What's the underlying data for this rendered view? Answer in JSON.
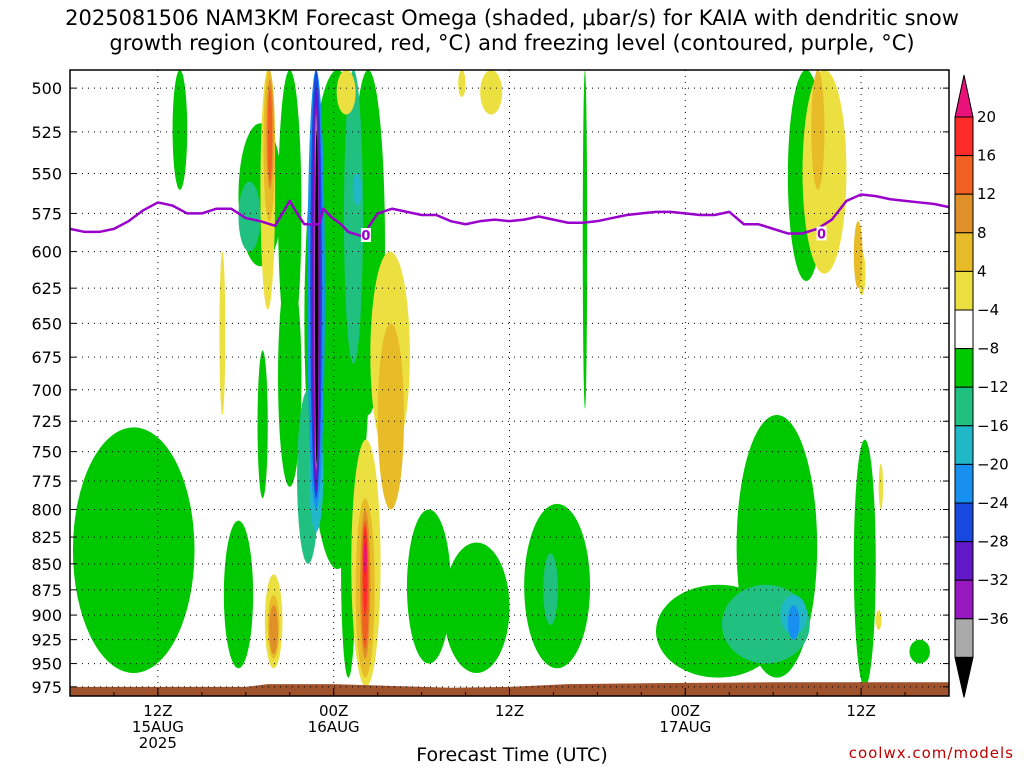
{
  "chart_data": {
    "type": "heatmap",
    "title_line1": "2025081506 NAM3KM Forecast Omega (shaded, μbar/s) for KAIA with dendritic snow",
    "title_line2": "growth region (contoured, red, °C) and freezing level (contoured, purple, °C)",
    "xlabel": "Forecast Time (UTC)",
    "ylabel": "",
    "credit": "coolwx.com/models",
    "y_ticks": [
      500,
      525,
      550,
      575,
      600,
      625,
      650,
      675,
      700,
      725,
      750,
      775,
      800,
      825,
      850,
      875,
      900,
      925,
      950,
      975
    ],
    "y_labels": [
      "500",
      "525",
      "550",
      "575",
      "600",
      "625",
      "650",
      "675",
      "700",
      "725",
      "750",
      "775",
      "800",
      "825",
      "850",
      "875",
      "900",
      "925",
      "950",
      "975"
    ],
    "ylim": [
      490,
      985
    ],
    "y_scale": "log",
    "xlim": [
      0,
      60
    ],
    "x_ticks": [
      {
        "hour": 6,
        "lines": [
          "12Z",
          "15AUG",
          "2025"
        ]
      },
      {
        "hour": 18,
        "lines": [
          "00Z",
          "16AUG"
        ]
      },
      {
        "hour": 30,
        "lines": [
          "12Z"
        ]
      },
      {
        "hour": 42,
        "lines": [
          "00Z",
          "17AUG"
        ]
      },
      {
        "hour": 54,
        "lines": [
          "12Z"
        ]
      }
    ],
    "grid": true,
    "colorbar": {
      "labels": [
        "20",
        "16",
        "12",
        "8",
        "4",
        "−4",
        "−8",
        "−12",
        "−16",
        "−20",
        "−24",
        "−28",
        "−32",
        "−36"
      ],
      "bounds": [
        20,
        16,
        12,
        8,
        4,
        -4,
        -8,
        -12,
        -16,
        -20,
        -24,
        -28,
        -32,
        -36
      ],
      "colors": [
        "#ff2a2a",
        "#f06020",
        "#e09028",
        "#e8bc28",
        "#ece040",
        "#ffffff",
        "#00c800",
        "#20c080",
        "#20b8c8",
        "#1890f0",
        "#1848e0",
        "#6018c8",
        "#9818c0",
        "#aaaaaa"
      ],
      "top_color": "#e8127a",
      "bottom_color": "#000000"
    },
    "freezing_level": {
      "value_label": "0",
      "x": [
        0,
        1,
        2,
        3,
        4,
        5,
        6,
        7,
        8,
        9,
        10,
        11,
        12,
        13,
        14,
        15,
        15.5,
        16,
        17,
        17.3,
        17.8,
        18.5,
        19,
        20,
        20.5,
        21,
        22,
        23,
        24,
        25,
        26,
        27,
        28,
        29,
        30,
        31,
        32,
        33,
        34,
        35,
        36,
        37,
        38,
        39,
        40,
        41,
        42,
        43,
        44,
        45,
        46,
        47,
        48,
        49,
        50,
        51,
        52,
        53,
        54,
        55,
        56,
        57,
        58,
        59,
        60
      ],
      "y": [
        585,
        587,
        587,
        585,
        580,
        573,
        568,
        570,
        575,
        575,
        572,
        572,
        578,
        580,
        583,
        567,
        575,
        582,
        582,
        572,
        577,
        582,
        587,
        590,
        582,
        575,
        572,
        574,
        576,
        576,
        580,
        582,
        580,
        579,
        580,
        579,
        577,
        579,
        581,
        581,
        580,
        578,
        576,
        575,
        574,
        574,
        575,
        576,
        576,
        574,
        582,
        582,
        585,
        588,
        588,
        585,
        579,
        567,
        563,
        564,
        566,
        567,
        568,
        569,
        571
      ]
    },
    "label_points": [
      {
        "x": 20.2,
        "y": 589
      },
      {
        "x": 51.3,
        "y": 588
      }
    ],
    "ground_color": "#a0522d",
    "ground": [
      {
        "x": 0,
        "p": 975
      },
      {
        "x": 12,
        "p": 975
      },
      {
        "x": 13.5,
        "p": 972
      },
      {
        "x": 18,
        "p": 972
      },
      {
        "x": 26,
        "p": 976
      },
      {
        "x": 30,
        "p": 975
      },
      {
        "x": 34,
        "p": 972
      },
      {
        "x": 40,
        "p": 971
      },
      {
        "x": 48,
        "p": 970
      },
      {
        "x": 56,
        "p": 970
      },
      {
        "x": 60,
        "p": 970
      }
    ],
    "regions": [
      {
        "color": "#00c800",
        "x": [
          7.0,
          8.0
        ],
        "y": [
          490,
          560
        ]
      },
      {
        "color": "#00c800",
        "x": [
          11.5,
          14.5
        ],
        "y": [
          610,
          520
        ]
      },
      {
        "color": "#00c800",
        "x": [
          12.8,
          13.5
        ],
        "y": [
          790,
          670
        ]
      },
      {
        "color": "#00c800",
        "x": [
          14.2,
          15.8
        ],
        "y": [
          490,
          670
        ]
      },
      {
        "color": "#00c800",
        "x": [
          14.2,
          15.8
        ],
        "y": [
          780,
          610
        ]
      },
      {
        "color": "#00c800",
        "x": [
          16.0,
          20.5
        ],
        "y": [
          490,
          855
        ]
      },
      {
        "color": "#00c800",
        "x": [
          19.2,
          21.5
        ],
        "y": [
          490,
          720
        ]
      },
      {
        "color": "#00c800",
        "x": [
          18.5,
          19.5
        ],
        "y": [
          755,
          965
        ]
      },
      {
        "color": "#00c800",
        "x": [
          0.2,
          8.5
        ],
        "y": [
          730,
          960
        ]
      },
      {
        "color": "#00c800",
        "x": [
          10.5,
          12.5
        ],
        "y": [
          810,
          955
        ]
      },
      {
        "color": "#00c800",
        "x": [
          23.0,
          26.0
        ],
        "y": [
          800,
          950
        ]
      },
      {
        "color": "#00c800",
        "x": [
          25.5,
          30.0
        ],
        "y": [
          830,
          960
        ]
      },
      {
        "color": "#00c800",
        "x": [
          31.0,
          35.5
        ],
        "y": [
          795,
          955
        ]
      },
      {
        "color": "#00c800",
        "x": [
          35.0,
          35.3
        ],
        "y": [
          490,
          715
        ]
      },
      {
        "color": "#00c800",
        "x": [
          40.0,
          48.5
        ],
        "y": [
          870,
          965
        ]
      },
      {
        "color": "#00c800",
        "x": [
          45.5,
          51.0
        ],
        "y": [
          720,
          965
        ]
      },
      {
        "color": "#00c800",
        "x": [
          49.0,
          51.5
        ],
        "y": [
          490,
          620
        ]
      },
      {
        "color": "#00c800",
        "x": [
          53.5,
          55.0
        ],
        "y": [
          740,
          975
        ]
      },
      {
        "color": "#00c800",
        "x": [
          57.3,
          58.7
        ],
        "y": [
          925,
          950
        ]
      },
      {
        "color": "#20c080",
        "x": [
          44.5,
          50.5
        ],
        "y": [
          870,
          950
        ]
      },
      {
        "color": "#20c080",
        "x": [
          32.3,
          33.3
        ],
        "y": [
          840,
          910
        ]
      },
      {
        "color": "#20c080",
        "x": [
          18.7,
          20.0
        ],
        "y": [
          490,
          680
        ]
      },
      {
        "color": "#20c080",
        "x": [
          11.5,
          13.0
        ],
        "y": [
          555,
          600
        ]
      },
      {
        "color": "#20c080",
        "x": [
          15.5,
          17.0
        ],
        "y": [
          700,
          850
        ]
      },
      {
        "color": "#20b8c8",
        "x": [
          48.5,
          50.3
        ],
        "y": [
          880,
          920
        ]
      },
      {
        "color": "#20b8c8",
        "x": [
          16.3,
          17.3
        ],
        "y": [
          720,
          820
        ]
      },
      {
        "color": "#20b8c8",
        "x": [
          19.3,
          19.9
        ],
        "y": [
          550,
          570
        ]
      },
      {
        "color": "#1890f0",
        "x": [
          49.0,
          49.8
        ],
        "y": [
          890,
          925
        ]
      },
      {
        "color": "#1890f0",
        "x": [
          16.2,
          17.4
        ],
        "y": [
          490,
          800
        ]
      },
      {
        "color": "#1848e0",
        "x": [
          16.4,
          17.2
        ],
        "y": [
          490,
          790
        ]
      },
      {
        "color": "#6018c8",
        "x": [
          16.5,
          17.1
        ],
        "y": [
          500,
          785
        ]
      },
      {
        "color": "#9818c0",
        "x": [
          16.6,
          17.0
        ],
        "y": [
          510,
          770
        ]
      },
      {
        "color": "#aaaaaa",
        "x": [
          16.7,
          16.9
        ],
        "y": [
          515,
          765
        ]
      },
      {
        "color": "#000000",
        "x": [
          16.72,
          16.95
        ],
        "y": [
          525,
          760
        ]
      },
      {
        "color": "#ece040",
        "x": [
          18.2,
          19.5
        ],
        "y": [
          490,
          515
        ]
      },
      {
        "color": "#ece040",
        "x": [
          20.5,
          23.2
        ],
        "y": [
          600,
          755
        ]
      },
      {
        "color": "#ece040",
        "x": [
          13.0,
          14.0
        ],
        "y": [
          490,
          640
        ]
      },
      {
        "color": "#ece040",
        "x": [
          13.3,
          14.5
        ],
        "y": [
          860,
          955
        ]
      },
      {
        "color": "#ece040",
        "x": [
          19.2,
          21.2
        ],
        "y": [
          740,
          975
        ]
      },
      {
        "color": "#ece040",
        "x": [
          10.2,
          10.6
        ],
        "y": [
          600,
          720
        ]
      },
      {
        "color": "#ece040",
        "x": [
          28.0,
          29.5
        ],
        "y": [
          490,
          515
        ]
      },
      {
        "color": "#ece040",
        "x": [
          26.5,
          27.0
        ],
        "y": [
          490,
          505
        ]
      },
      {
        "color": "#ece040",
        "x": [
          50.0,
          53.0
        ],
        "y": [
          490,
          615
        ]
      },
      {
        "color": "#ece040",
        "x": [
          53.8,
          54.3
        ],
        "y": [
          600,
          630
        ]
      },
      {
        "color": "#ece040",
        "x": [
          55.2,
          55.5
        ],
        "y": [
          760,
          800
        ]
      },
      {
        "color": "#ece040",
        "x": [
          55.0,
          55.4
        ],
        "y": [
          895,
          915
        ]
      },
      {
        "color": "#e8bc28",
        "x": [
          21.0,
          22.8
        ],
        "y": [
          650,
          800
        ]
      },
      {
        "color": "#e8bc28",
        "x": [
          13.2,
          14.0
        ],
        "y": [
          490,
          580
        ]
      },
      {
        "color": "#e8bc28",
        "x": [
          13.5,
          14.3
        ],
        "y": [
          880,
          945
        ]
      },
      {
        "color": "#e8bc28",
        "x": [
          19.5,
          20.8
        ],
        "y": [
          790,
          965
        ]
      },
      {
        "color": "#e8bc28",
        "x": [
          50.6,
          51.5
        ],
        "y": [
          490,
          560
        ]
      },
      {
        "color": "#e8bc28",
        "x": [
          53.5,
          54.1
        ],
        "y": [
          580,
          625
        ]
      },
      {
        "color": "#e09028",
        "x": [
          13.4,
          13.9
        ],
        "y": [
          495,
          560
        ]
      },
      {
        "color": "#e09028",
        "x": [
          13.6,
          14.2
        ],
        "y": [
          890,
          940
        ]
      },
      {
        "color": "#e09028",
        "x": [
          19.8,
          20.5
        ],
        "y": [
          800,
          945
        ]
      },
      {
        "color": "#f06020",
        "x": [
          13.5,
          13.8
        ],
        "y": [
          500,
          555
        ]
      },
      {
        "color": "#f06020",
        "x": [
          19.9,
          20.4
        ],
        "y": [
          810,
          935
        ]
      },
      {
        "color": "#ff2a2a",
        "x": [
          20.0,
          20.3
        ],
        "y": [
          815,
          900
        ]
      },
      {
        "color": "#e8127a",
        "x": [
          20.05,
          20.25
        ],
        "y": [
          830,
          860
        ]
      }
    ]
  }
}
